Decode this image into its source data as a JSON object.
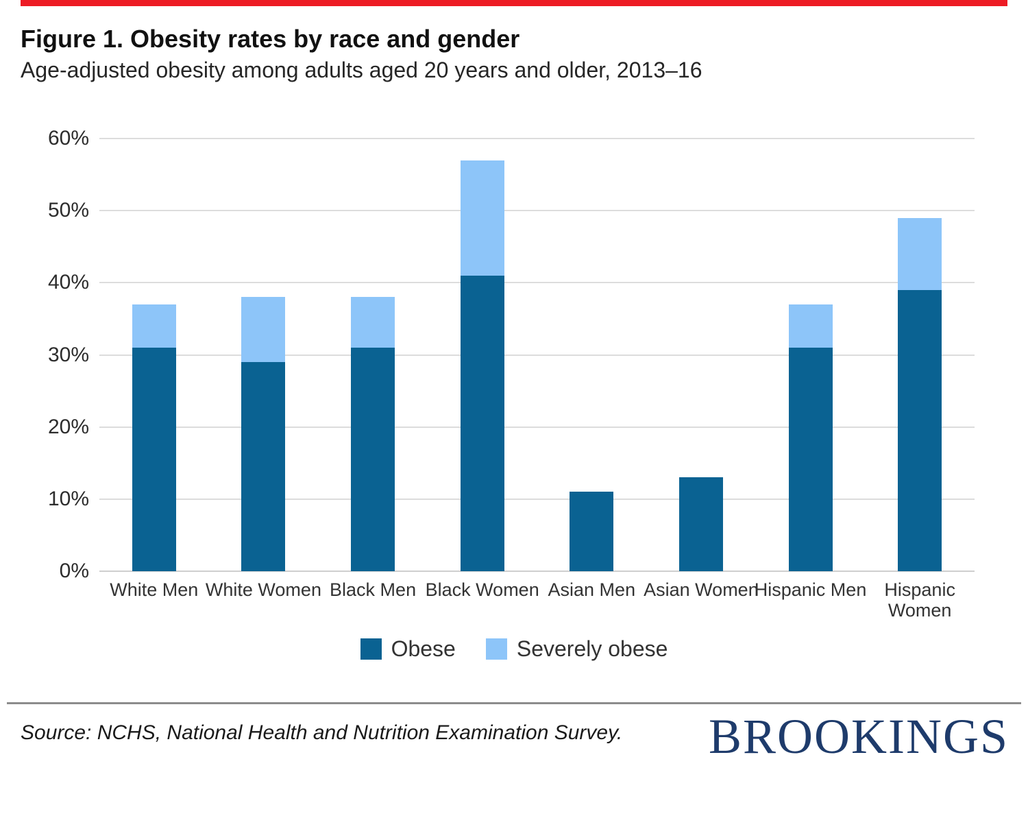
{
  "page": {
    "top_rule_color": "#ed1b24",
    "background_color": "#ffffff"
  },
  "header": {
    "title": "Figure 1. Obesity rates by race and gender",
    "subtitle": "Age-adjusted obesity among adults aged 20 years and older, 2013–16"
  },
  "chart_data": {
    "type": "bar",
    "stacked": true,
    "title": "Figure 1. Obesity rates by race and gender",
    "subtitle": "Age-adjusted obesity among adults aged 20 years and older, 2013–16",
    "categories": [
      "White Men",
      "White Women",
      "Black Men",
      "Black Women",
      "Asian Men",
      "Asian Women",
      "Hispanic Men",
      "Hispanic Women"
    ],
    "series": [
      {
        "name": "Obese",
        "color": "#0a6292",
        "values": [
          31,
          29,
          31,
          41,
          11,
          13,
          31,
          39
        ]
      },
      {
        "name": "Severely obese",
        "color": "#8dc5f9",
        "values": [
          6,
          9,
          7,
          16,
          0,
          0,
          6,
          10
        ]
      }
    ],
    "stacked_totals": [
      37,
      38,
      38,
      57,
      11,
      13,
      37,
      49
    ],
    "xlabel": "",
    "ylabel": "",
    "ylim": [
      0,
      60
    ],
    "yticks": [
      {
        "value": 0,
        "label": "0%"
      },
      {
        "value": 10,
        "label": "10%"
      },
      {
        "value": 20,
        "label": "20%"
      },
      {
        "value": 30,
        "label": "30%"
      },
      {
        "value": 40,
        "label": "40%"
      },
      {
        "value": 50,
        "label": "50%"
      },
      {
        "value": 60,
        "label": "60%"
      }
    ],
    "grid": true,
    "gridline_color": "#dcdcdc",
    "legend_position": "bottom"
  },
  "footer": {
    "source": "Source: NCHS, National Health and Nutrition Examination Survey.",
    "logo_text": "BROOKINGS",
    "logo_color": "#1e3b6b"
  }
}
